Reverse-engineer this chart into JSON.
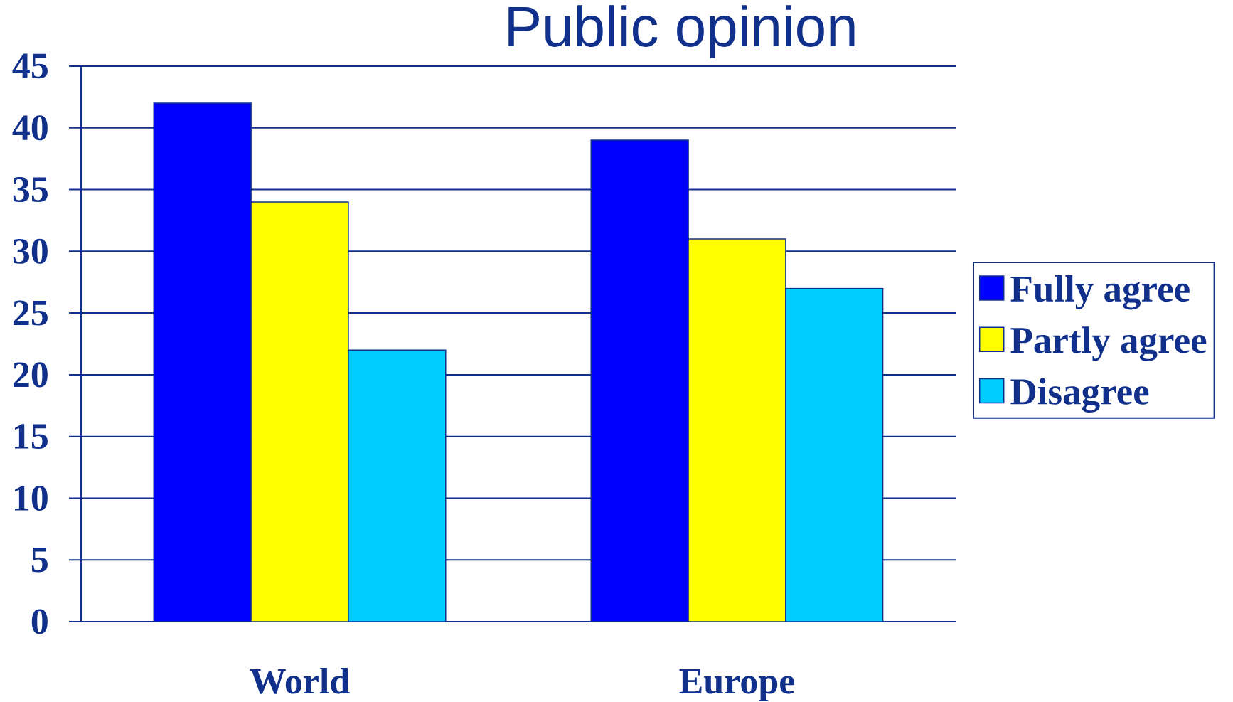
{
  "chart_data": {
    "type": "bar",
    "title": "Public opinion",
    "categories": [
      "World",
      "Europe"
    ],
    "series": [
      {
        "name": "Fully agree",
        "color": "#0000ff",
        "values": [
          42,
          39
        ]
      },
      {
        "name": "Partly agree",
        "color": "#ffff00",
        "values": [
          34,
          31
        ]
      },
      {
        "name": "Disagree",
        "color": "#00ccff",
        "values": [
          22,
          27
        ]
      }
    ],
    "ylim": [
      0,
      45
    ],
    "yticks": [
      0,
      5,
      10,
      15,
      20,
      25,
      30,
      35,
      40,
      45
    ],
    "grid": "y",
    "legend": "right"
  }
}
